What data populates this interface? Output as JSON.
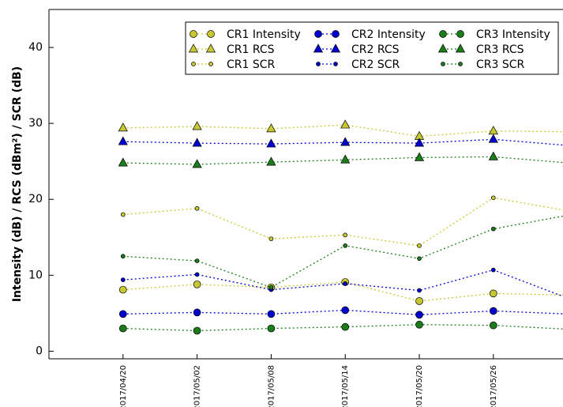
{
  "chart_data": {
    "type": "line",
    "y_label": "Intensity (dB) / RCS (dBm²) / SCR (dB)",
    "categories": [
      "2017/04/20",
      "2017/05/02",
      "2017/05/08",
      "2017/05/14",
      "2017/05/20",
      "2017/05/26",
      null
    ],
    "xlim": [
      -1,
      5.94
    ],
    "ylim": [
      -1,
      45
    ],
    "yticks": [
      0,
      10,
      20,
      30,
      40
    ],
    "legend": "upper right",
    "series": [
      {
        "name": "CR1 Intensity",
        "color": "#c8c832",
        "marker": "circle",
        "values": [
          8.1,
          8.8,
          8.4,
          9.1,
          6.6,
          7.6,
          7.4
        ]
      },
      {
        "name": "CR1 RCS",
        "color": "#c8c832",
        "marker": "triangle",
        "values": [
          29.4,
          29.6,
          29.3,
          29.8,
          28.3,
          29.0,
          28.9
        ]
      },
      {
        "name": "CR1 SCR",
        "color": "#c8c832",
        "marker": "dot",
        "values": [
          18.0,
          18.8,
          14.8,
          15.3,
          13.9,
          20.2,
          18.5
        ]
      },
      {
        "name": "CR2 Intensity",
        "color": "#0000d0",
        "marker": "circle",
        "values": [
          4.9,
          5.1,
          4.9,
          5.4,
          4.8,
          5.3,
          4.9
        ]
      },
      {
        "name": "CR2 RCS",
        "color": "#0000d0",
        "marker": "triangle",
        "values": [
          27.6,
          27.4,
          27.3,
          27.5,
          27.4,
          27.9,
          27.1
        ]
      },
      {
        "name": "CR2 SCR",
        "color": "#0000d0",
        "marker": "dot",
        "values": [
          9.4,
          10.1,
          8.1,
          8.9,
          8.0,
          10.7,
          7.0
        ]
      },
      {
        "name": "CR3 Intensity",
        "color": "#1a7d1a",
        "marker": "circle",
        "values": [
          3.0,
          2.7,
          3.0,
          3.2,
          3.5,
          3.4,
          2.9
        ]
      },
      {
        "name": "CR3 RCS",
        "color": "#1a7d1a",
        "marker": "triangle",
        "values": [
          24.8,
          24.6,
          24.9,
          25.2,
          25.5,
          25.6,
          24.8
        ]
      },
      {
        "name": "CR3 SCR",
        "color": "#1a7d1a",
        "marker": "dot",
        "values": [
          12.5,
          11.9,
          8.4,
          13.9,
          12.2,
          16.1,
          17.9
        ]
      }
    ]
  }
}
